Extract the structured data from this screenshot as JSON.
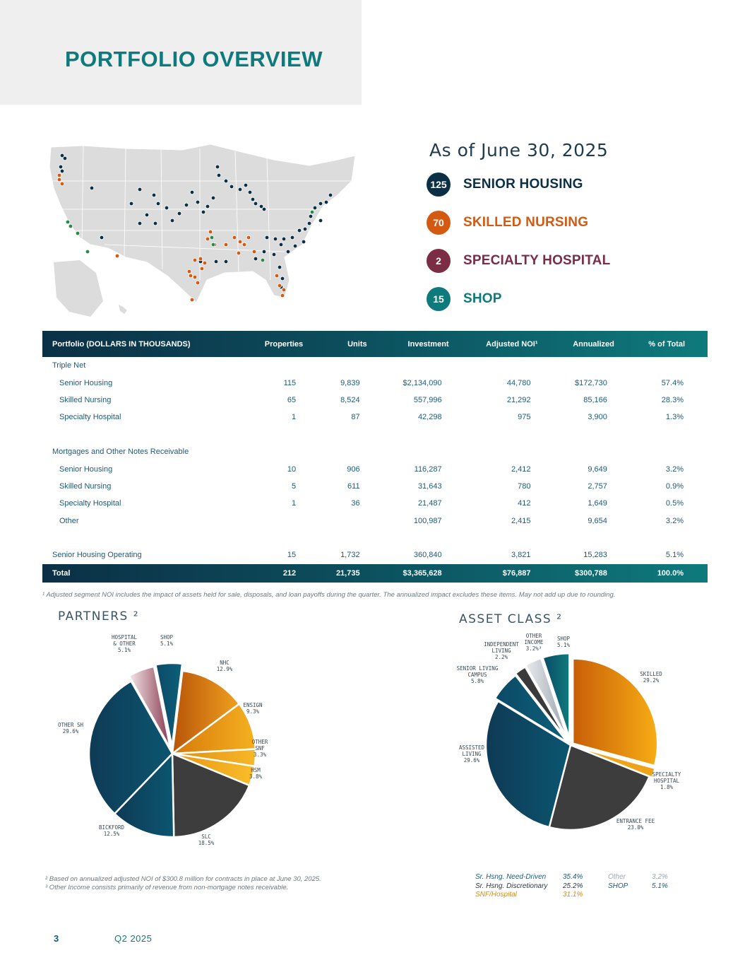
{
  "page": {
    "title": "PORTFOLIO OVERVIEW",
    "as_of": "As of June 30, 2025",
    "page_number": "3",
    "quarter": "Q2 2025"
  },
  "kpis": [
    {
      "count": "125",
      "label": "SENIOR HOUSING",
      "color": "#0b3045"
    },
    {
      "count": "70",
      "label": "SKILLED NURSING",
      "color": "#d45a12"
    },
    {
      "count": "2",
      "label": "SPECIALTY HOSPITAL",
      "color": "#7a2d45"
    },
    {
      "count": "15",
      "label": "SHOP",
      "color": "#0e7a7c"
    }
  ],
  "table": {
    "headers": [
      "Portfolio  (DOLLARS IN THOUSANDS)",
      "Properties",
      "Units",
      "Investment",
      "Adjusted NOI¹",
      "Annualized",
      "% of Total"
    ],
    "triple_net": "Triple Net",
    "tn_senior": [
      "Senior Housing",
      "115",
      "9,839",
      "$2,134,090",
      "44,780",
      "$172,730",
      "57.4%"
    ],
    "tn_skilled": [
      "Skilled Nursing",
      "65",
      "8,524",
      "557,996",
      "21,292",
      "85,166",
      "28.3%"
    ],
    "tn_specialty": [
      "Specialty Hospital",
      "1",
      "87",
      "42,298",
      "975",
      "3,900",
      "1.3%"
    ],
    "mortgages": "Mortgages and Other Notes Receivable",
    "m_senior": [
      "Senior Housing",
      "10",
      "906",
      "116,287",
      "2,412",
      "9,649",
      "3.2%"
    ],
    "m_skilled": [
      "Skilled Nursing",
      "5",
      "611",
      "31,643",
      "780",
      "2,757",
      "0.9%"
    ],
    "m_specialty": [
      "Specialty Hospital",
      "1",
      "36",
      "21,487",
      "412",
      "1,649",
      "0.5%"
    ],
    "m_other": [
      "Other",
      "",
      "",
      "100,987",
      "2,415",
      "9,654",
      "3.2%"
    ],
    "shop": [
      "Senior Housing Operating",
      "15",
      "1,732",
      "360,840",
      "3,821",
      "15,283",
      "5.1%"
    ],
    "total": [
      "Total",
      "212",
      "21,735",
      "$3,365,628",
      "$76,887",
      "$300,788",
      "100.0%"
    ]
  },
  "footnotes": {
    "f1": "¹ Adjusted segment NOI includes the impact of assets held for sale, disposals, and loan payoffs during the quarter. The annualized impact excludes these items. May not add up due to rounding.",
    "f2": "²  Based on annualized adjusted NOI of $300.8 million for contracts in place at June 30, 2025.",
    "f3": "³ Other Income consists primarily of revenue from non-mortgage notes receivable."
  },
  "partners_title": "PARTNERS ²",
  "asset_class_title": "ASSET  CLASS ²",
  "chart_data": [
    {
      "type": "pie",
      "title": "PARTNERS ²",
      "slices": [
        {
          "label": "NHC",
          "value": 12.9,
          "pct": "12.9%",
          "colors": [
            "#b85508",
            "#f0a020"
          ]
        },
        {
          "label": "ENSIGN",
          "value": 9.3,
          "pct": "9.3%",
          "colors": [
            "#d67a0a",
            "#f5b020"
          ]
        },
        {
          "label": "OTHER SNF",
          "value": 3.3,
          "pct": "3.3%",
          "colors": [
            "#e08d10",
            "#f7b828"
          ]
        },
        {
          "label": "HSM",
          "value": 3.8,
          "pct": "3.8%",
          "colors": [
            "#e89512",
            "#f9bd2a"
          ]
        },
        {
          "label": "SLC",
          "value": 18.5,
          "pct": "18.5%",
          "colors": [
            "#3d3d3d",
            "#3d3d3d"
          ]
        },
        {
          "label": "BICKFORD",
          "value": 12.5,
          "pct": "12.5%",
          "colors": [
            "#0e3a55",
            "#0c5670"
          ]
        },
        {
          "label": "OTHER SH",
          "value": 29.6,
          "pct": "29.6%",
          "colors": [
            "#0e3a55",
            "#0c5670"
          ]
        },
        {
          "label": "HOSPITAL & OTHER",
          "value": 5.1,
          "pct": "5.1%",
          "colors": [
            "#f4e8ea",
            "#8a3a50"
          ]
        },
        {
          "label": "SHOP",
          "value": 5.1,
          "pct": "5.1%",
          "colors": [
            "#0c4a66",
            "#0d5f7a"
          ]
        }
      ]
    },
    {
      "type": "pie",
      "title": "ASSET CLASS ²",
      "slices": [
        {
          "label": "SKILLED",
          "value": 29.2,
          "pct": "29.2%",
          "colors": [
            "#c85e08",
            "#f7ad14"
          ]
        },
        {
          "label": "SPECIALTY HOSPITAL",
          "value": 1.8,
          "pct": "1.8%",
          "colors": [
            "#f0a318",
            "#f0a318"
          ]
        },
        {
          "label": "ENTRANCE FEE",
          "value": 23.0,
          "pct": "23.0%",
          "colors": [
            "#3d3d3d",
            "#3d3d3d"
          ]
        },
        {
          "label": "ASSISTED LIVING",
          "value": 29.6,
          "pct": "29.6%",
          "colors": [
            "#0e3a55",
            "#0c5670"
          ]
        },
        {
          "label": "SENIOR LIVING CAMPUS",
          "value": 5.8,
          "pct": "5.8%",
          "colors": [
            "#0c4a66",
            "#0d5f7a"
          ]
        },
        {
          "label": "INDEPENDENT LIVING",
          "value": 2.2,
          "pct": "2.2%",
          "colors": [
            "#3a3a3a",
            "#3a3a3a"
          ]
        },
        {
          "label": "OTHER INCOME",
          "value": 3.2,
          "pct": "3.2%³",
          "colors": [
            "#e9ecef",
            "#9aa5ae"
          ]
        },
        {
          "label": "SHOP",
          "value": 5.1,
          "pct": "5.1%",
          "colors": [
            "#0c4a66",
            "#0e7a7c"
          ]
        }
      ]
    }
  ],
  "legend": [
    {
      "label": "Sr. Hsng. Need-Driven",
      "value": "35.4%"
    },
    {
      "label": "Other",
      "value": "3.2%"
    },
    {
      "label": "Sr. Hsng. Discretionary",
      "value": "25.2%"
    },
    {
      "label": "SHOP",
      "value": "5.1%"
    },
    {
      "label": "SNF/Hospital",
      "value": "31.1%"
    }
  ],
  "map_points": {
    "senior_color": "#0b3045",
    "skilled_color": "#d45a12",
    "shop_color": "#2a8a45"
  }
}
